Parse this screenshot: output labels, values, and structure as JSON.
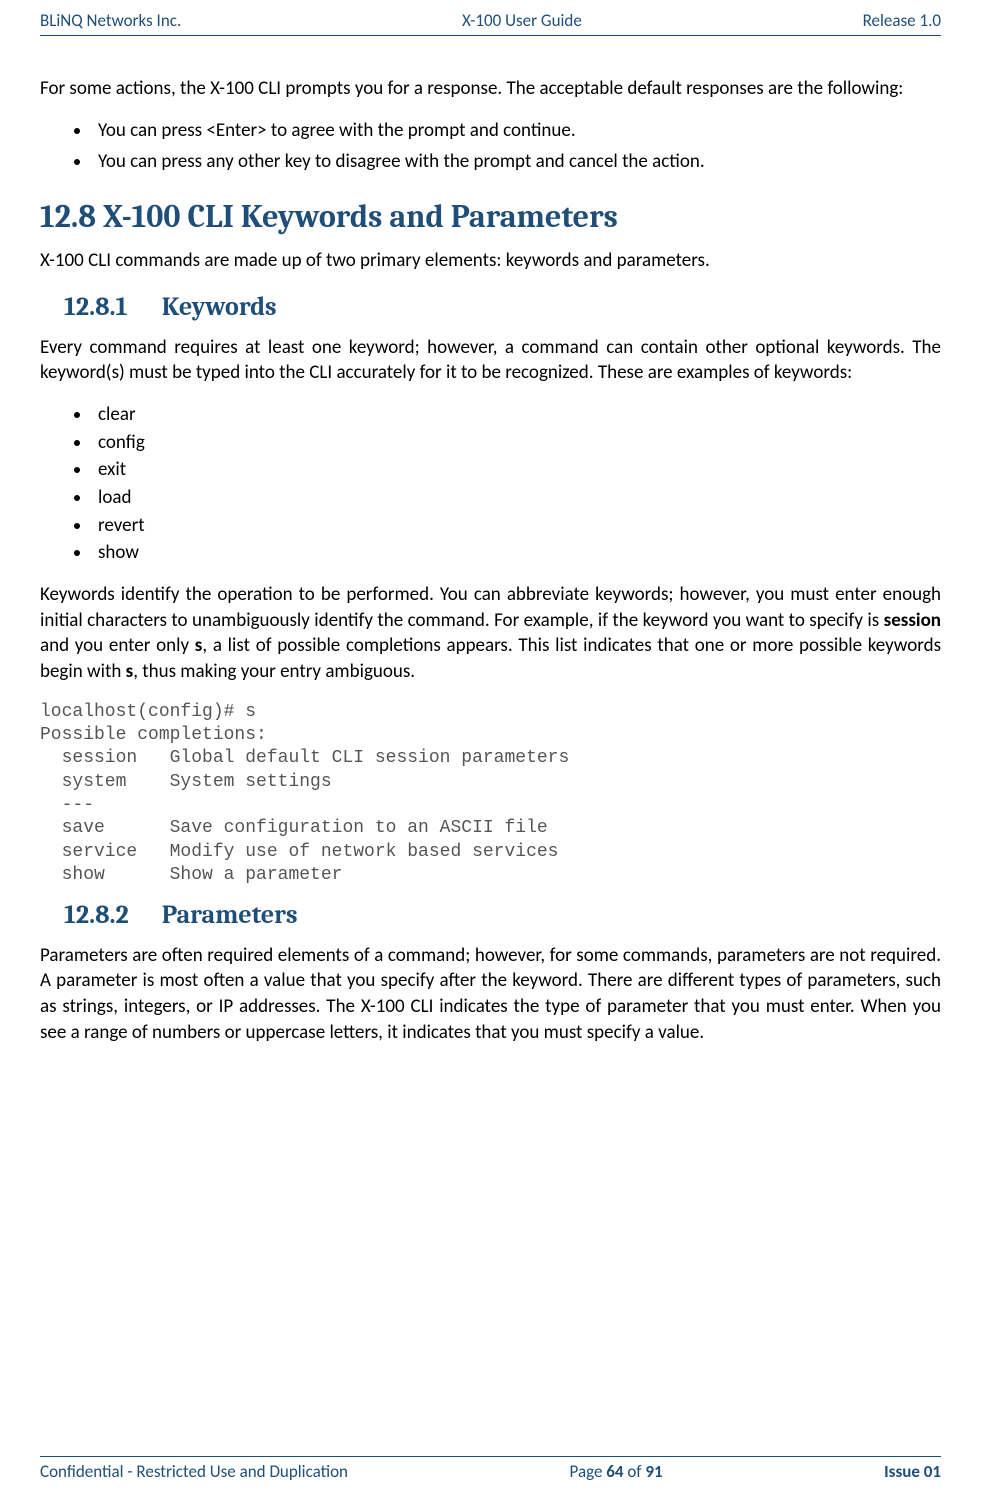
{
  "header": {
    "left": "BLiNQ Networks Inc.",
    "center": "X-100 User Guide",
    "right": "Release 1.0"
  },
  "intro": {
    "para": "For some actions, the X-100 CLI prompts you for a response. The acceptable default responses are the following:",
    "bullets": [
      "You can press <Enter> to agree with the prompt and continue.",
      "You can press any other key to disagree with the prompt and cancel the action."
    ]
  },
  "section": {
    "title": "12.8 X-100 CLI Keywords and Parameters",
    "para": "X-100 CLI commands are made up of two primary elements: keywords and parameters."
  },
  "keywords": {
    "num": "12.8.1",
    "title": "Keywords",
    "para1": "Every command requires at least one keyword; however, a command can contain other optional keywords. The keyword(s) must be typed into the CLI accurately for it to be recognized. These are examples of keywords:",
    "items": [
      "clear",
      "config",
      "exit",
      "load",
      "revert",
      "show"
    ],
    "para2_a": "Keywords identify the operation to be performed. You can abbreviate keywords; however, you must enter enough initial characters to unambiguously identify the command. For example, if the keyword you want to specify is ",
    "para2_session": "session",
    "para2_b": " and you enter only ",
    "para2_s1": "s",
    "para2_c": ", a list of possible completions appears. This list indicates that one or more possible keywords begin with ",
    "para2_s2": "s",
    "para2_d": ", thus making your entry ambiguous.",
    "code": "localhost(config)# s\nPossible completions:\n  session   Global default CLI session parameters\n  system    System settings\n  ---\n  save      Save configuration to an ASCII file\n  service   Modify use of network based services\n  show      Show a parameter"
  },
  "parameters": {
    "num": "12.8.2",
    "title": "Parameters",
    "para": "Parameters are often required elements of a command; however, for some commands, parameters are not required. A parameter is most often a value that you specify after the keyword. There are different types of parameters, such as strings, integers, or IP addresses. The X-100 CLI indicates the type of parameter that you must enter. When you see a range of numbers or uppercase letters, it indicates that you must specify a value."
  },
  "footer": {
    "left": "Confidential - Restricted Use and Duplication",
    "center_a": "Page ",
    "center_pg": "64",
    "center_b": " of ",
    "center_tot": "91",
    "right": "Issue 01"
  }
}
